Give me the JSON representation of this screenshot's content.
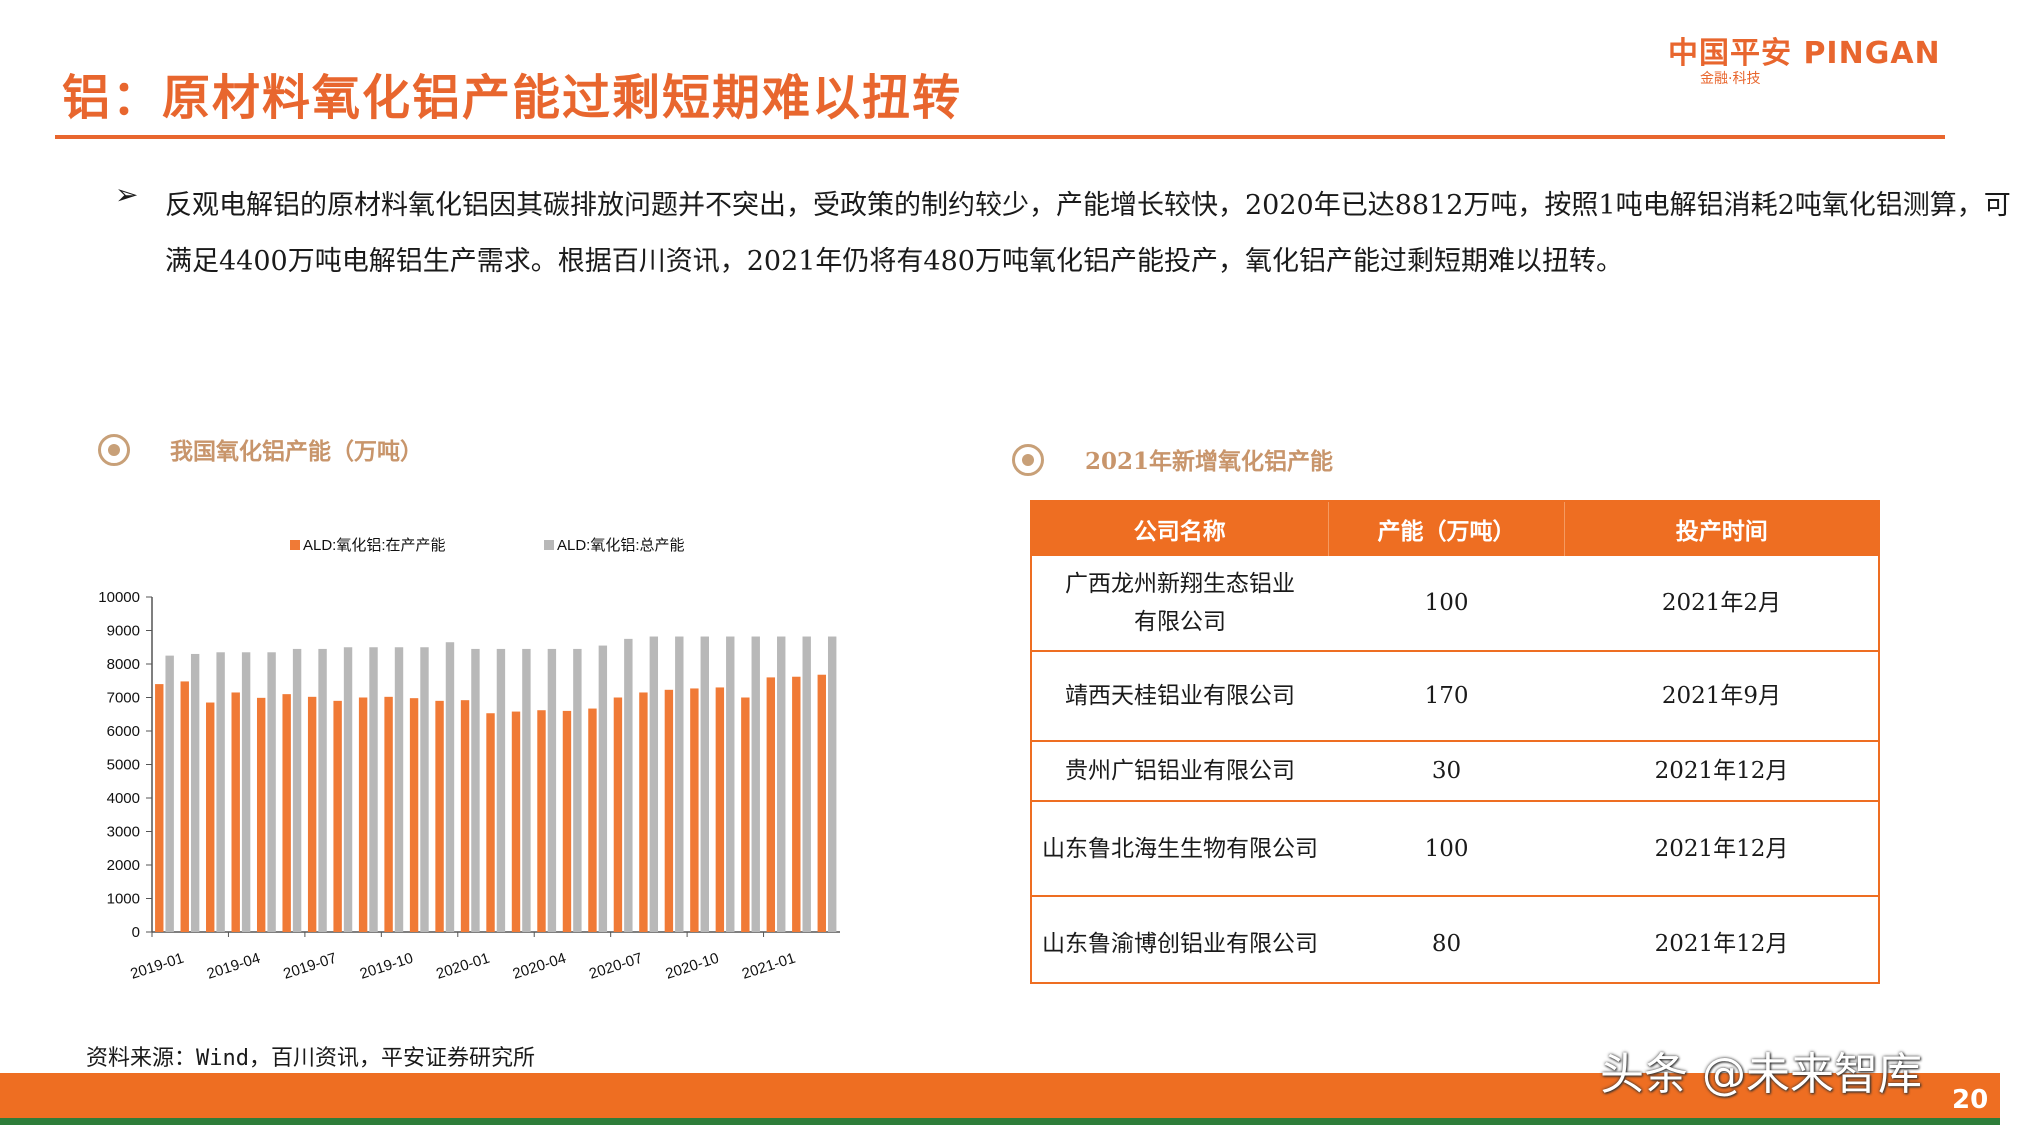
{
  "header": {
    "title": "铝：原材料氧化铝产能过剩短期难以扭转",
    "logo_main": "中国平安 PINGAN",
    "logo_sub": "金融·科技"
  },
  "bullet": {
    "mark": "➢",
    "text": "反观电解铝的原材料氧化铝因其碳排放问题并不突出，受政策的制约较少，产能增长较快，2020年已达8812万吨，按照1吨电解铝消耗2吨氧化铝测算，可满足4400万吨电解铝生产需求。根据百川资讯，2021年仍将有480万吨氧化铝产能投产，氧化铝产能过剩短期难以扭转。"
  },
  "chart_section": {
    "title": "我国氧化铝产能（万吨）"
  },
  "table_section": {
    "title": "2021年新增氧化铝产能"
  },
  "chart_data": {
    "type": "bar",
    "legend_position": "top",
    "series": [
      {
        "name": "ALD:氧化铝:在产产能",
        "color": "#f07a36",
        "values": [
          7400,
          7480,
          6850,
          7150,
          6990,
          7100,
          7020,
          6900,
          7000,
          7020,
          6980,
          6900,
          6920,
          6530,
          6580,
          6620,
          6600,
          6670,
          7000,
          7150,
          7230,
          7270,
          7300,
          7000,
          7600,
          7620,
          7680
        ]
      },
      {
        "name": "ALD:氧化铝:总产能",
        "color": "#b8b8b8",
        "values": [
          8250,
          8300,
          8350,
          8350,
          8350,
          8450,
          8450,
          8500,
          8500,
          8500,
          8500,
          8650,
          8450,
          8450,
          8450,
          8450,
          8450,
          8550,
          8750,
          8820,
          8820,
          8820,
          8820,
          8820,
          8820,
          8820,
          8820
        ]
      }
    ],
    "x_tick_labels": [
      "2019-01",
      "2019-04",
      "2019-07",
      "2019-10",
      "2020-01",
      "2020-04",
      "2020-07",
      "2020-10",
      "2021-01"
    ],
    "ylim": [
      0,
      10000
    ],
    "y_ticks": [
      "0",
      "1000",
      "2000",
      "3000",
      "4000",
      "5000",
      "6000",
      "7000",
      "8000",
      "9000",
      "10000"
    ],
    "grid": false
  },
  "table": {
    "headers": [
      "公司名称",
      "产能（万吨）",
      "投产时间"
    ],
    "rows": [
      [
        "广西龙州新翔生态铝业有限公司",
        "100",
        "2021年2月"
      ],
      [
        "靖西天桂铝业有限公司",
        "170",
        "2021年9月"
      ],
      [
        "贵州广铝铝业有限公司",
        "30",
        "2021年12月"
      ],
      [
        "山东鲁北海生生物有限公司",
        "100",
        "2021年12月"
      ],
      [
        "山东鲁渝博创铝业有限公司",
        "80",
        "2021年12月"
      ]
    ]
  },
  "footer": {
    "source": "资料来源：Wind，百川资讯，平安证券研究所",
    "watermark": "头条 @未来智库",
    "page_number": "20"
  }
}
